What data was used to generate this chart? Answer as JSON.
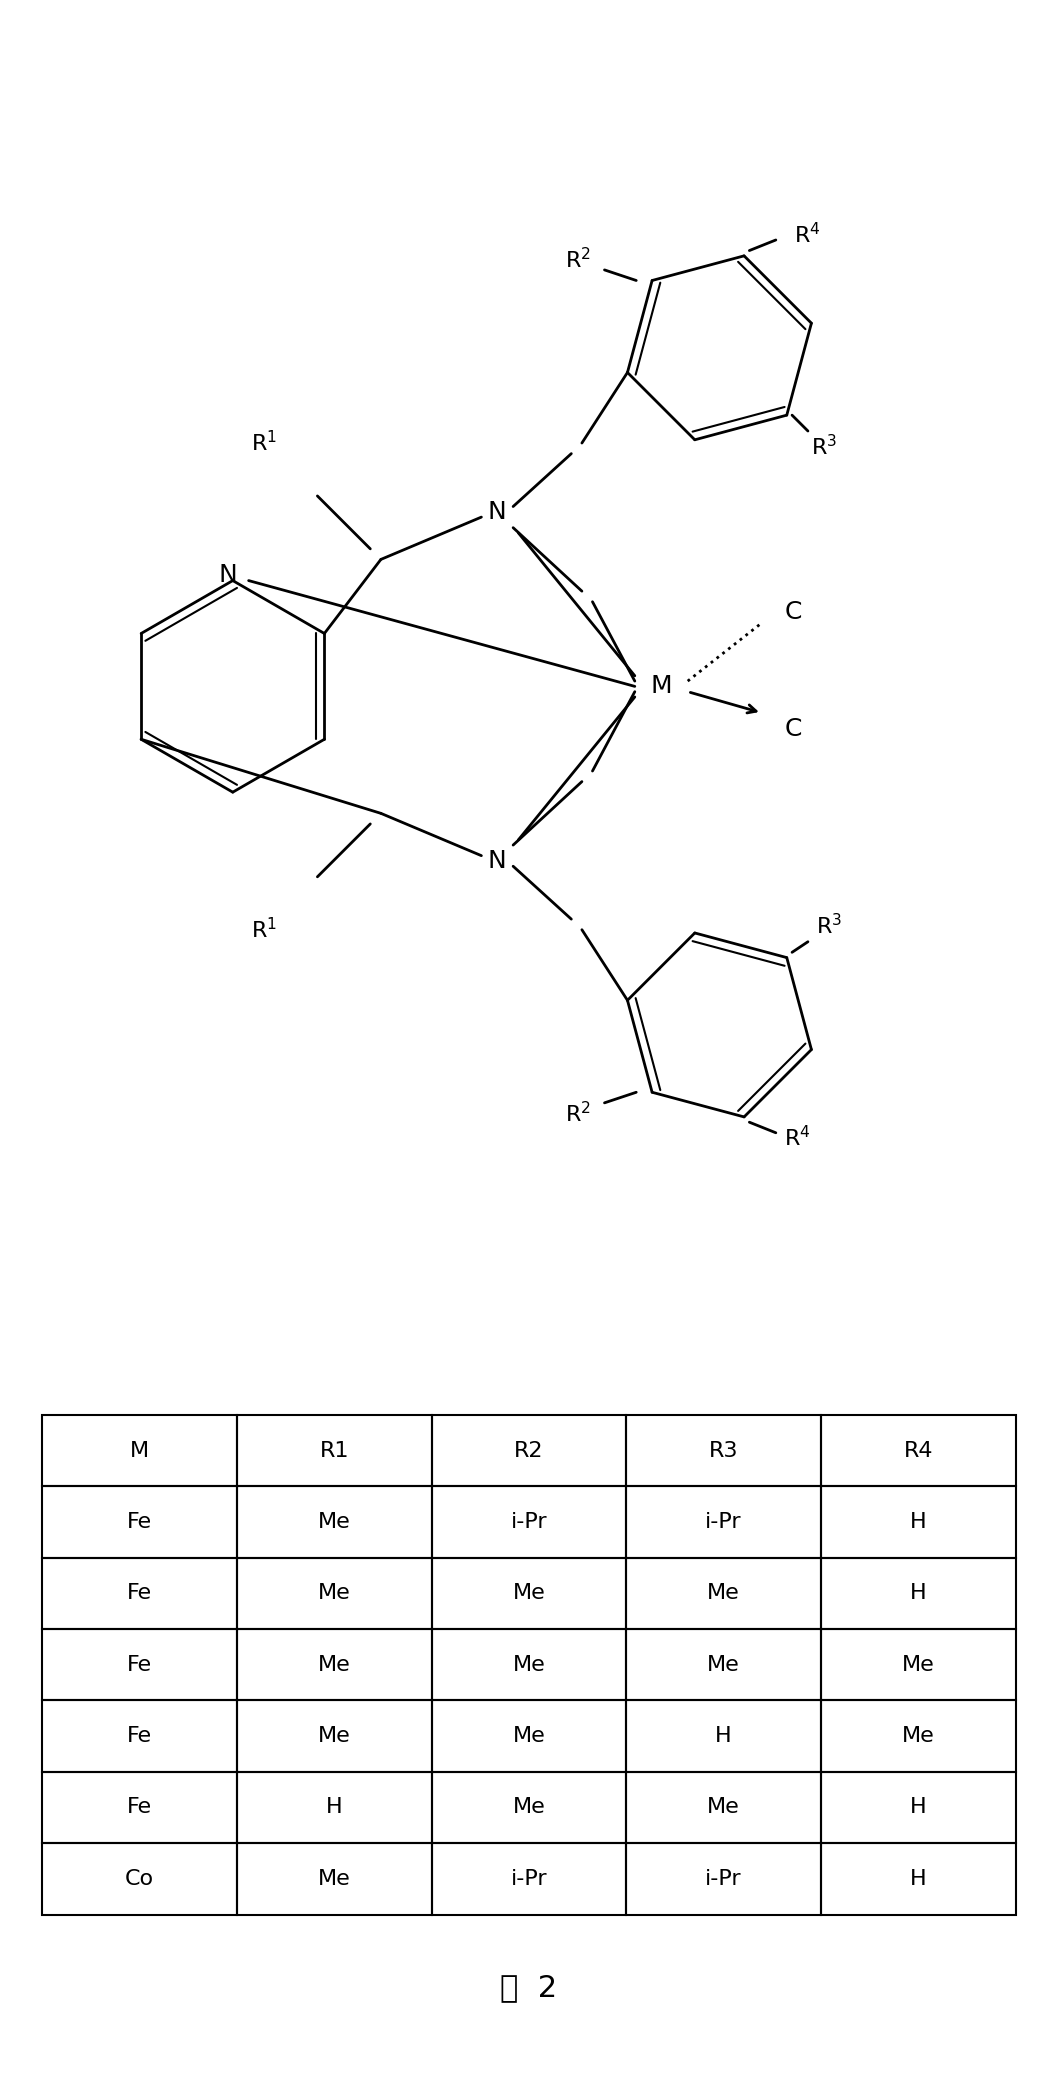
{
  "figure_label": "图  2",
  "table_headers": [
    "M",
    "R1",
    "R2",
    "R3",
    "R4"
  ],
  "table_rows": [
    [
      "Fe",
      "Me",
      "i-Pr",
      "i-Pr",
      "H"
    ],
    [
      "Fe",
      "Me",
      "Me",
      "Me",
      "H"
    ],
    [
      "Fe",
      "Me",
      "Me",
      "Me",
      "Me"
    ],
    [
      "Fe",
      "Me",
      "Me",
      "H",
      "Me"
    ],
    [
      "Fe",
      "H",
      "Me",
      "Me",
      "H"
    ],
    [
      "Co",
      "Me",
      "i-Pr",
      "i-Pr",
      "H"
    ]
  ],
  "bg_color": "#ffffff"
}
